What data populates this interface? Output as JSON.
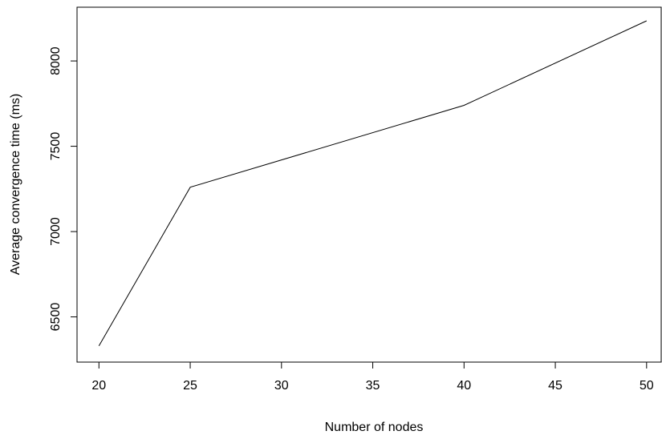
{
  "chart_data": {
    "type": "line",
    "title": "",
    "xlabel": "Number of nodes",
    "ylabel": "Average convergence time (ms)",
    "x": [
      20,
      25,
      40,
      50
    ],
    "series": [
      {
        "values": [
          6330,
          7260,
          7740,
          8235
        ]
      }
    ],
    "xlim": [
      18.8,
      50.8
    ],
    "ylim": [
      6235,
      8315
    ],
    "x_ticks": [
      20,
      25,
      30,
      35,
      40,
      45,
      50
    ],
    "y_ticks": [
      6500,
      7000,
      7500,
      8000
    ],
    "grid": false,
    "legend": "none",
    "colors": {
      "line": "#000000",
      "axes": "#000000",
      "background": "#ffffff"
    }
  }
}
